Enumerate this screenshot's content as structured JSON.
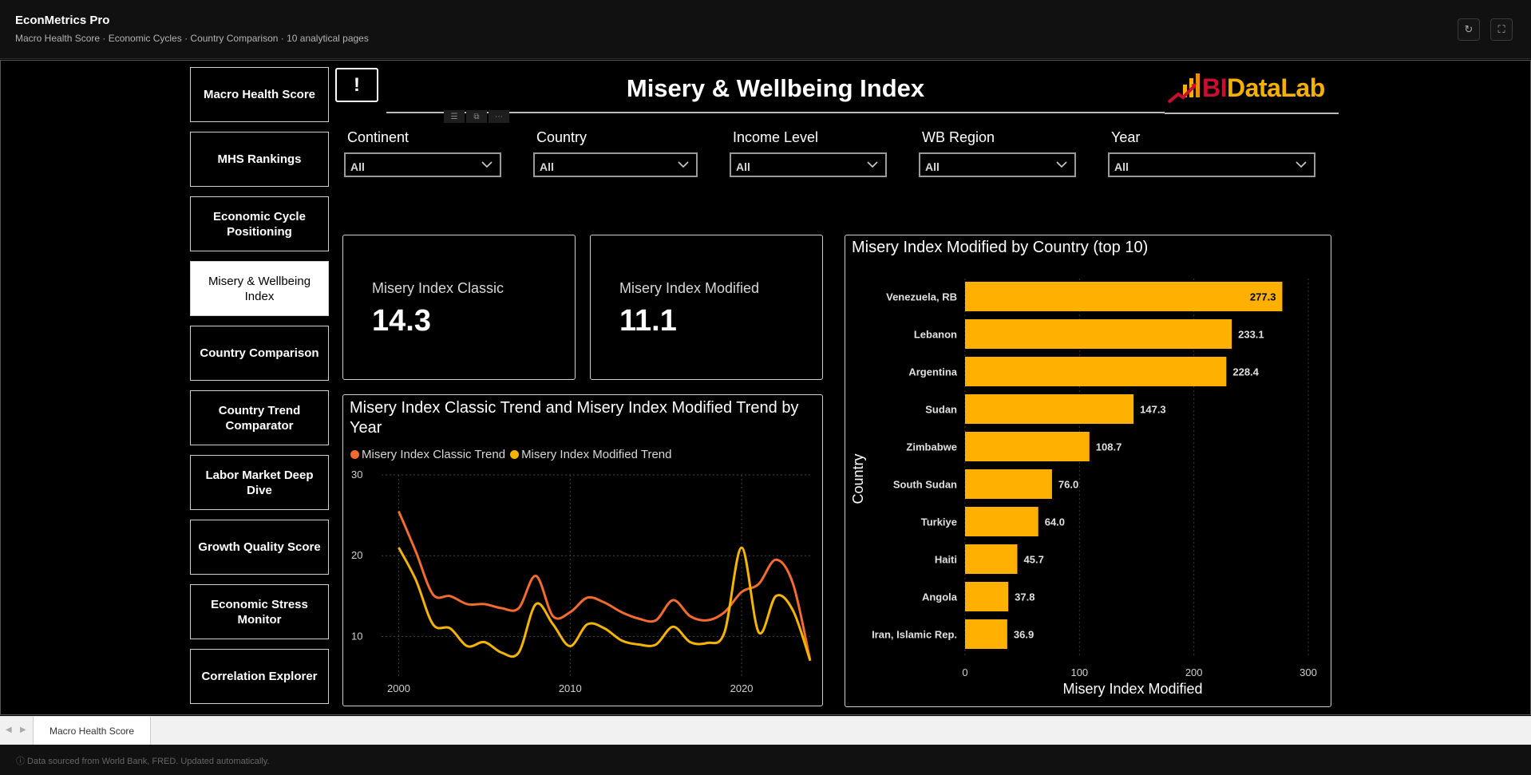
{
  "app": {
    "title": "EconMetrics Pro",
    "subtitle": "Macro Health Score · Economic Cycles · Country Comparison · 10 analytical pages",
    "refresh_icon": "↻",
    "fullscreen_icon": "⛶"
  },
  "nav": {
    "items": [
      {
        "label": "Macro Health Score",
        "active": false
      },
      {
        "label": "MHS Rankings",
        "active": false
      },
      {
        "label": "Economic Cycle Positioning",
        "active": false
      },
      {
        "label": "Misery & Wellbeing Index",
        "active": true
      },
      {
        "label": "Country Comparison",
        "active": false
      },
      {
        "label": "Country Trend Comparator",
        "active": false
      },
      {
        "label": "Labor Market Deep Dive",
        "active": false
      },
      {
        "label": "Growth Quality Score",
        "active": false
      },
      {
        "label": "Economic Stress Monitor",
        "active": false
      },
      {
        "label": "Correlation Explorer",
        "active": false
      }
    ]
  },
  "header": {
    "info_label": "!",
    "page_title": "Misery & Wellbeing Index",
    "logo_part1": "BI",
    "logo_part2": "DataLab"
  },
  "slicers": [
    {
      "label": "Continent",
      "value": "All"
    },
    {
      "label": "Country",
      "value": "All"
    },
    {
      "label": "Income Level",
      "value": "All"
    },
    {
      "label": "WB Region",
      "value": "All"
    },
    {
      "label": "Year",
      "value": "All"
    }
  ],
  "cards": [
    {
      "label": "Misery Index Classic",
      "value": "14.3"
    },
    {
      "label": "Misery Index Modified",
      "value": "11.1"
    }
  ],
  "chart_data": [
    {
      "type": "line",
      "title": "Misery Index Classic Trend and Misery Index Modified Trend by Year",
      "xlim": [
        1999,
        2024
      ],
      "ylim": [
        5,
        30
      ],
      "yticks": [
        10,
        20,
        30
      ],
      "xticks": [
        2000,
        2010,
        2020
      ],
      "grid": true,
      "legend": "top-left",
      "x": [
        2000,
        2001,
        2002,
        2003,
        2004,
        2005,
        2006,
        2007,
        2008,
        2009,
        2010,
        2011,
        2012,
        2013,
        2014,
        2015,
        2016,
        2017,
        2018,
        2019,
        2020,
        2021,
        2022,
        2023,
        2024
      ],
      "series": [
        {
          "name": "Misery Index Classic Trend",
          "color": "#f26b2f",
          "values": [
            25.5,
            20.5,
            15.2,
            15.0,
            14.0,
            14.0,
            13.5,
            13.5,
            17.5,
            12.5,
            13.0,
            14.8,
            14.2,
            13.0,
            12.2,
            12.0,
            14.5,
            12.5,
            12.0,
            13.0,
            15.5,
            16.5,
            19.5,
            16.5,
            7.0
          ]
        },
        {
          "name": "Misery Index Modified Trend",
          "color": "#f5b400",
          "values": [
            21.0,
            17.0,
            11.5,
            11.0,
            8.8,
            9.3,
            8.0,
            8.0,
            14.0,
            11.5,
            8.8,
            11.5,
            11.0,
            9.5,
            9.0,
            9.0,
            11.2,
            9.3,
            9.2,
            10.5,
            21.0,
            10.5,
            15.0,
            13.2,
            7.0
          ]
        }
      ]
    },
    {
      "type": "bar",
      "orientation": "horizontal",
      "title": "Misery Index Modified by Country (top 10)",
      "xlabel": "Misery Index Modified",
      "ylabel": "Country",
      "xlim": [
        0,
        300
      ],
      "xticks": [
        0,
        100,
        200,
        300
      ],
      "color": "#ffb000",
      "categories": [
        "Venezuela, RB",
        "Lebanon",
        "Argentina",
        "Sudan",
        "Zimbabwe",
        "South Sudan",
        "Turkiye",
        "Haiti",
        "Angola",
        "Iran, Islamic Rep."
      ],
      "values": [
        277.3,
        233.1,
        228.4,
        147.3,
        108.7,
        76.0,
        64.0,
        45.7,
        37.8,
        36.9
      ],
      "labels": [
        "277.3",
        "233.1",
        "228.4",
        "147.3",
        "108.7",
        "76.0",
        "64.0",
        "45.7",
        "37.8",
        "36.9"
      ]
    }
  ],
  "tabs": {
    "active_label": "Macro Health Score"
  },
  "footer": {
    "text": "ⓘ  Data sourced from World Bank, FRED. Updated automatically."
  }
}
